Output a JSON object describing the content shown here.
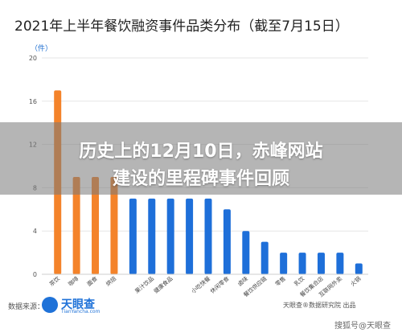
{
  "overlay": {
    "line1": "历史上的12月10日，赤峰网站",
    "line2": "建设的里程碑事件回顾"
  },
  "footer": {
    "source_label": "数据来源：",
    "logo_name": "天眼查",
    "logo_sub": "TianYancha.com",
    "right_text": "天眼查®数据研究院 出品",
    "corner_watermark": "搜狐号@天眼查"
  },
  "colors": {
    "highlight": "#f4832a",
    "normal": "#1e6fd9",
    "overlay": "#808080"
  },
  "chart_data": {
    "type": "bar",
    "title": "2021年上半年餐饮融资事件品类分布（截至7月15日）",
    "ylabel": "（件）",
    "ylim": [
      0,
      20
    ],
    "yticks": [
      0,
      4,
      8,
      12,
      16,
      20
    ],
    "grid": true,
    "categories": [
      "茶饮",
      "咖啡",
      "面食",
      "烘焙",
      "",
      "果汁饮品",
      "健康食品",
      "",
      "小吃快餐",
      "休闲零食",
      "卤味",
      "餐饮供应链",
      "零售",
      "乳饮",
      "餐饮集合店",
      "互联网外卖",
      "火锅"
    ],
    "values": [
      17,
      9,
      9,
      9,
      7,
      7,
      7,
      7,
      7,
      6,
      4,
      3,
      2,
      2,
      2,
      2,
      1
    ],
    "highlight_count": 4
  }
}
